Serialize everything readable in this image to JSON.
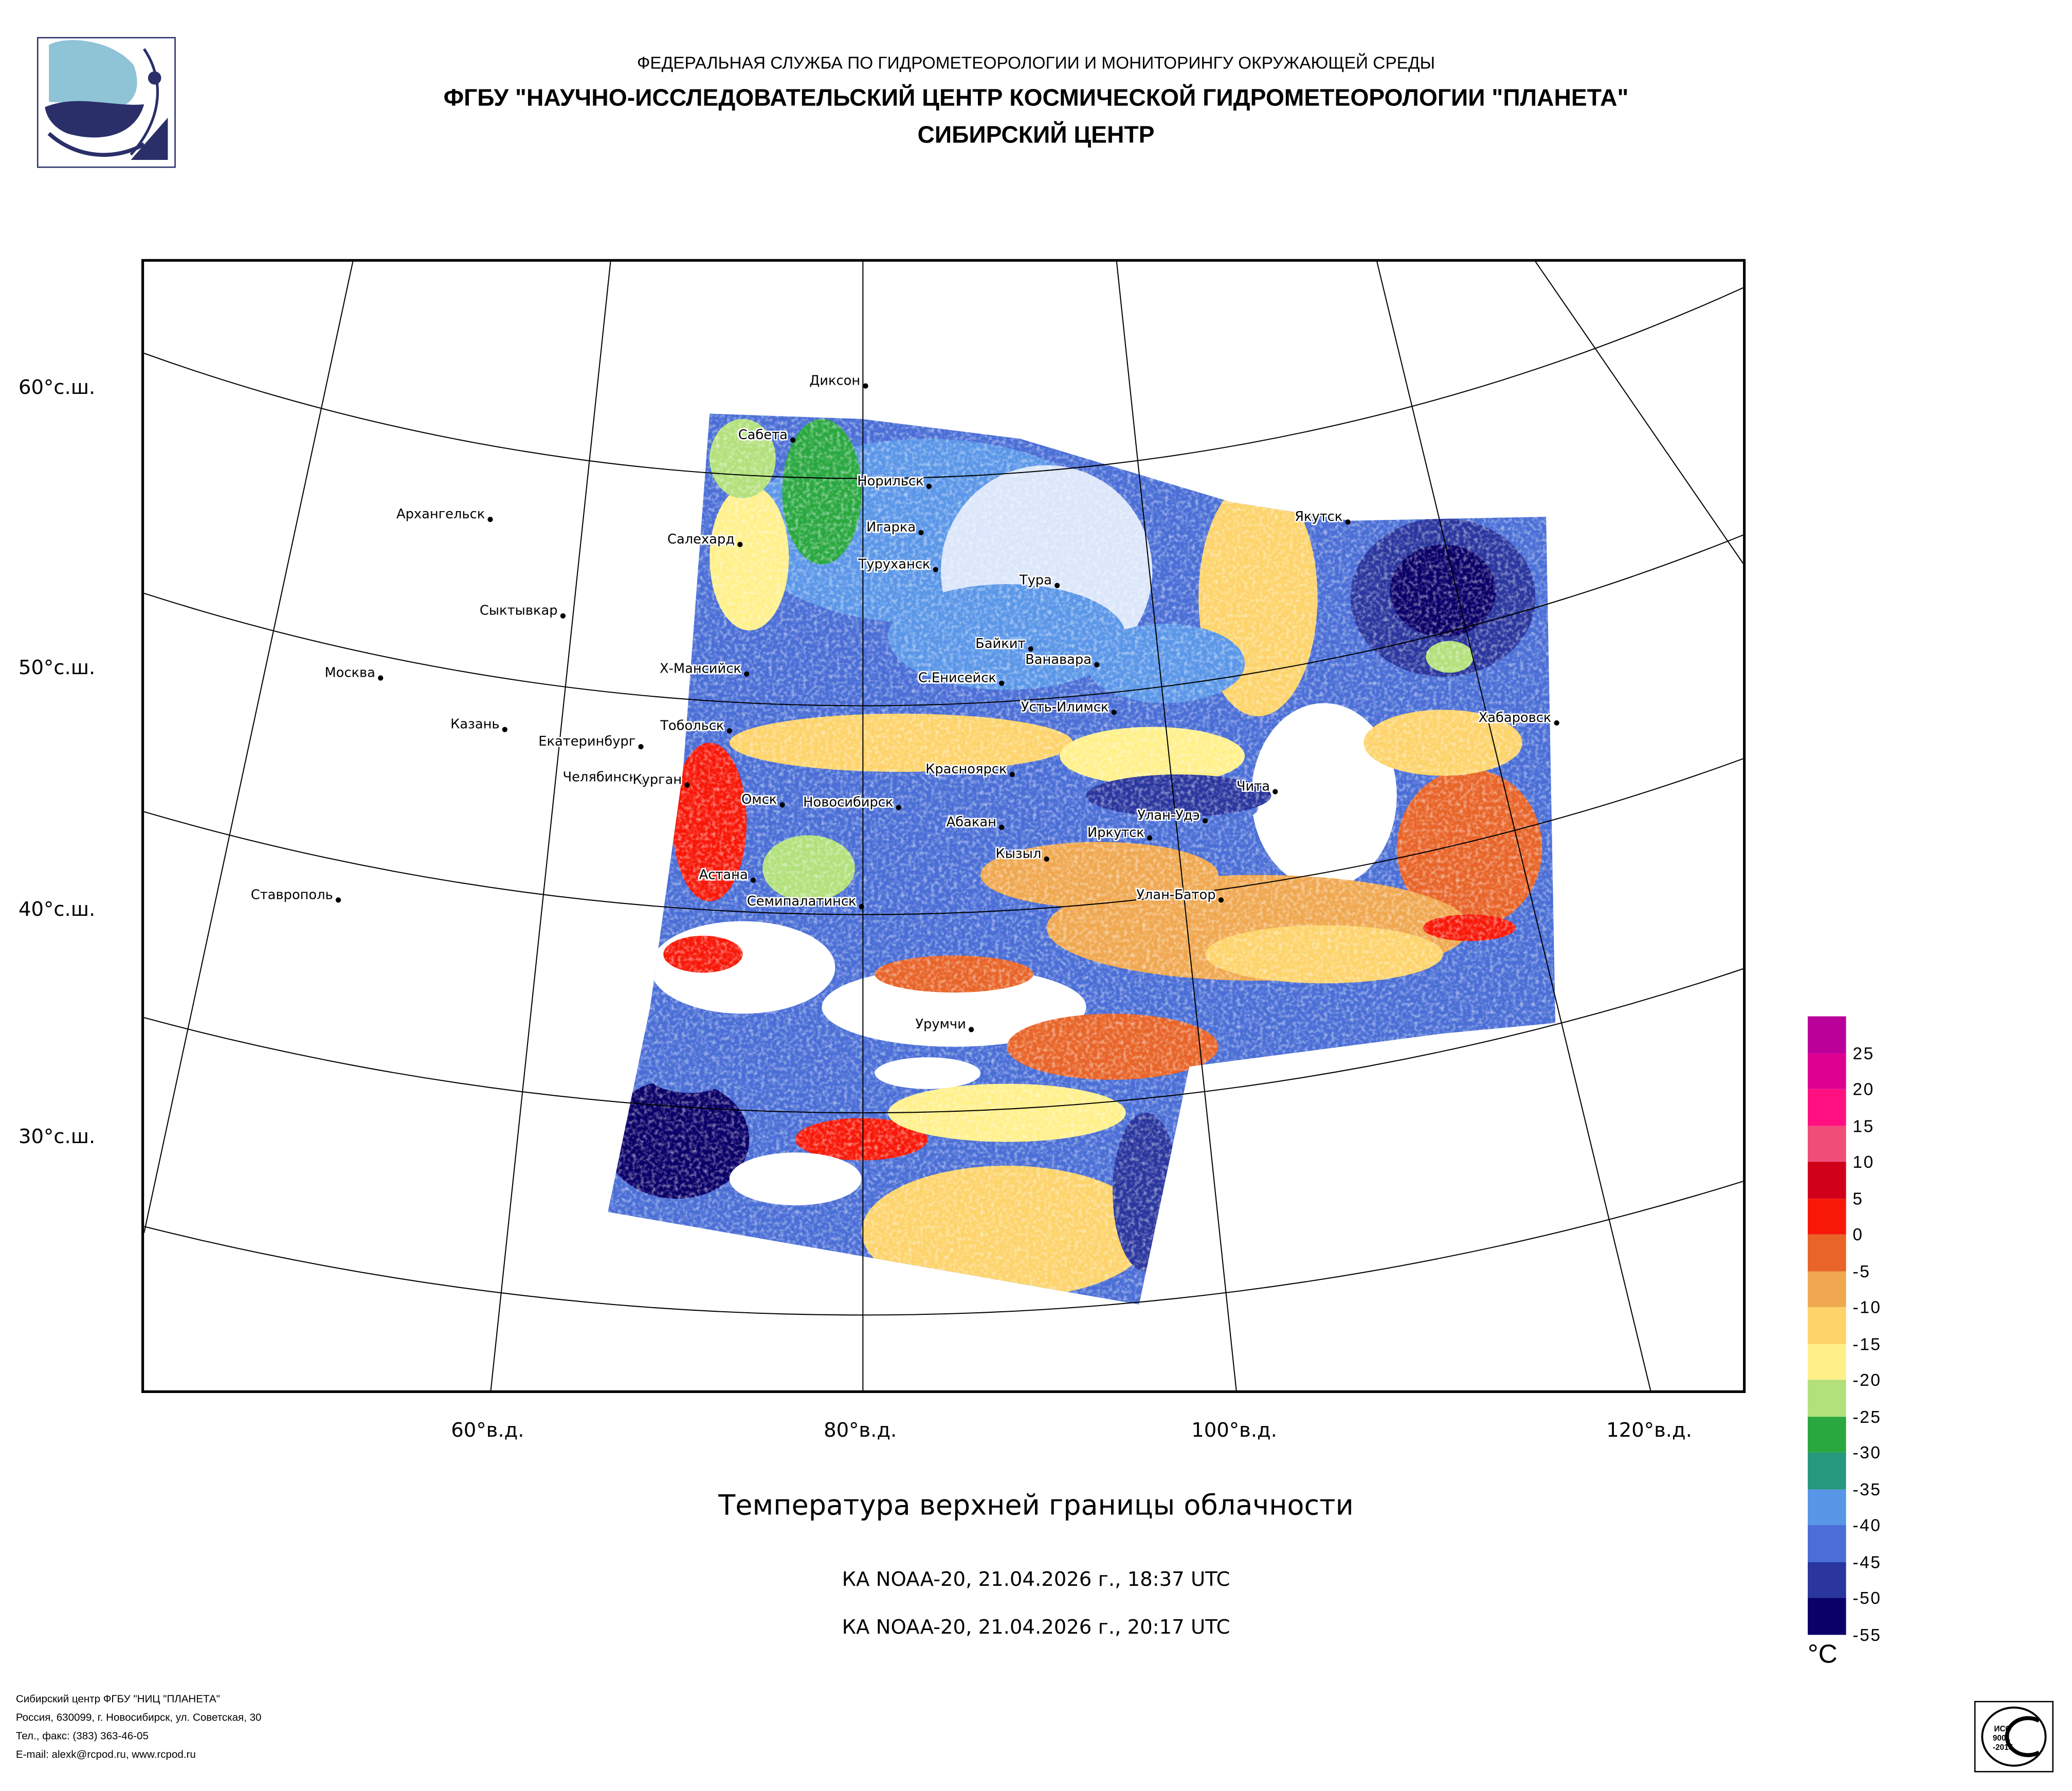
{
  "header": {
    "line1": "ФЕДЕРАЛЬНАЯ СЛУЖБА ПО ГИДРОМЕТЕОРОЛОГИИ И МОНИТОРИНГУ ОКРУЖАЮЩЕЙ СРЕДЫ",
    "line2": "ФГБУ \"НАУЧНО-ИССЛЕДОВАТЕЛЬСКИЙ ЦЕНТР КОСМИЧЕСКОЙ ГИДРОМЕТЕОРОЛОГИИ \"ПЛАНЕТА\"",
    "line3": "СИБИРСКИЙ ЦЕНТР"
  },
  "map": {
    "lat_labels": [
      "60°с.ш.",
      "50°с.ш.",
      "40°с.ш.",
      "30°с.ш."
    ],
    "lon_labels": [
      "60°в.д.",
      "80°в.д.",
      "100°в.д.",
      "120°в.д."
    ],
    "cities": [
      "Диксон",
      "Сабета",
      "Норильск",
      "Игарка",
      "Салехард",
      "Туруханск",
      "Тура",
      "Архангельск",
      "Сыктывкар",
      "Байкит",
      "Ванавара",
      "Москва",
      "Х-Мансийск",
      "С.Енисейск",
      "Якутск",
      "Усть-Илимск",
      "Хабаровск",
      "Казань",
      "Тобольск",
      "Екатеринбург",
      "Челябинск",
      "Курган",
      "Красноярск",
      "Чита",
      "Омск",
      "Новосибирск",
      "Абакан",
      "Улан-Удэ",
      "Иркутск",
      "Кызыл",
      "Астана",
      "Ставрополь",
      "Семипалатинск",
      "Улан-Батор",
      "Урумчи"
    ]
  },
  "title": "Температура верхней границы облачности",
  "passes": [
    "КА NOAA-20, 21.04.2026 г., 18:37 UTC",
    "КА NOAA-20, 21.04.2026 г., 20:17 UTC"
  ],
  "legend": {
    "unit": "°C",
    "labels": [
      "25",
      "20",
      "15",
      "10",
      "5",
      "0",
      "-5",
      "-10",
      "-15",
      "-20",
      "-25",
      "-30",
      "-35",
      "-40",
      "-45",
      "-50",
      "-55"
    ],
    "colors": [
      "#bb009a",
      "#dd0090",
      "#ff1080",
      "#f04e78",
      "#d0001a",
      "#f81808",
      "#e86428",
      "#f0a850",
      "#fdd36a",
      "#fff08a",
      "#b2e07a",
      "#2aa840",
      "#26987e",
      "#5a96e8",
      "#4a6ed6",
      "#2a369e",
      "#0a0068"
    ]
  },
  "footer": {
    "lines": [
      "Сибирский центр ФГБУ \"НИЦ \"ПЛАНЕТА\"",
      "Россия, 630099, г. Новосибирск, ул. Советская, 30",
      "Тел., факс: (383) 363-46-05",
      "E-mail: alexk@rcpod.ru, www.rcpod.ru"
    ]
  },
  "iso_stamp": {
    "top": "ДОБРОСОВЕСТНЫЙ",
    "center": "ИСО 9001 -2015",
    "bottom": "ПОСТАВЩИК"
  }
}
